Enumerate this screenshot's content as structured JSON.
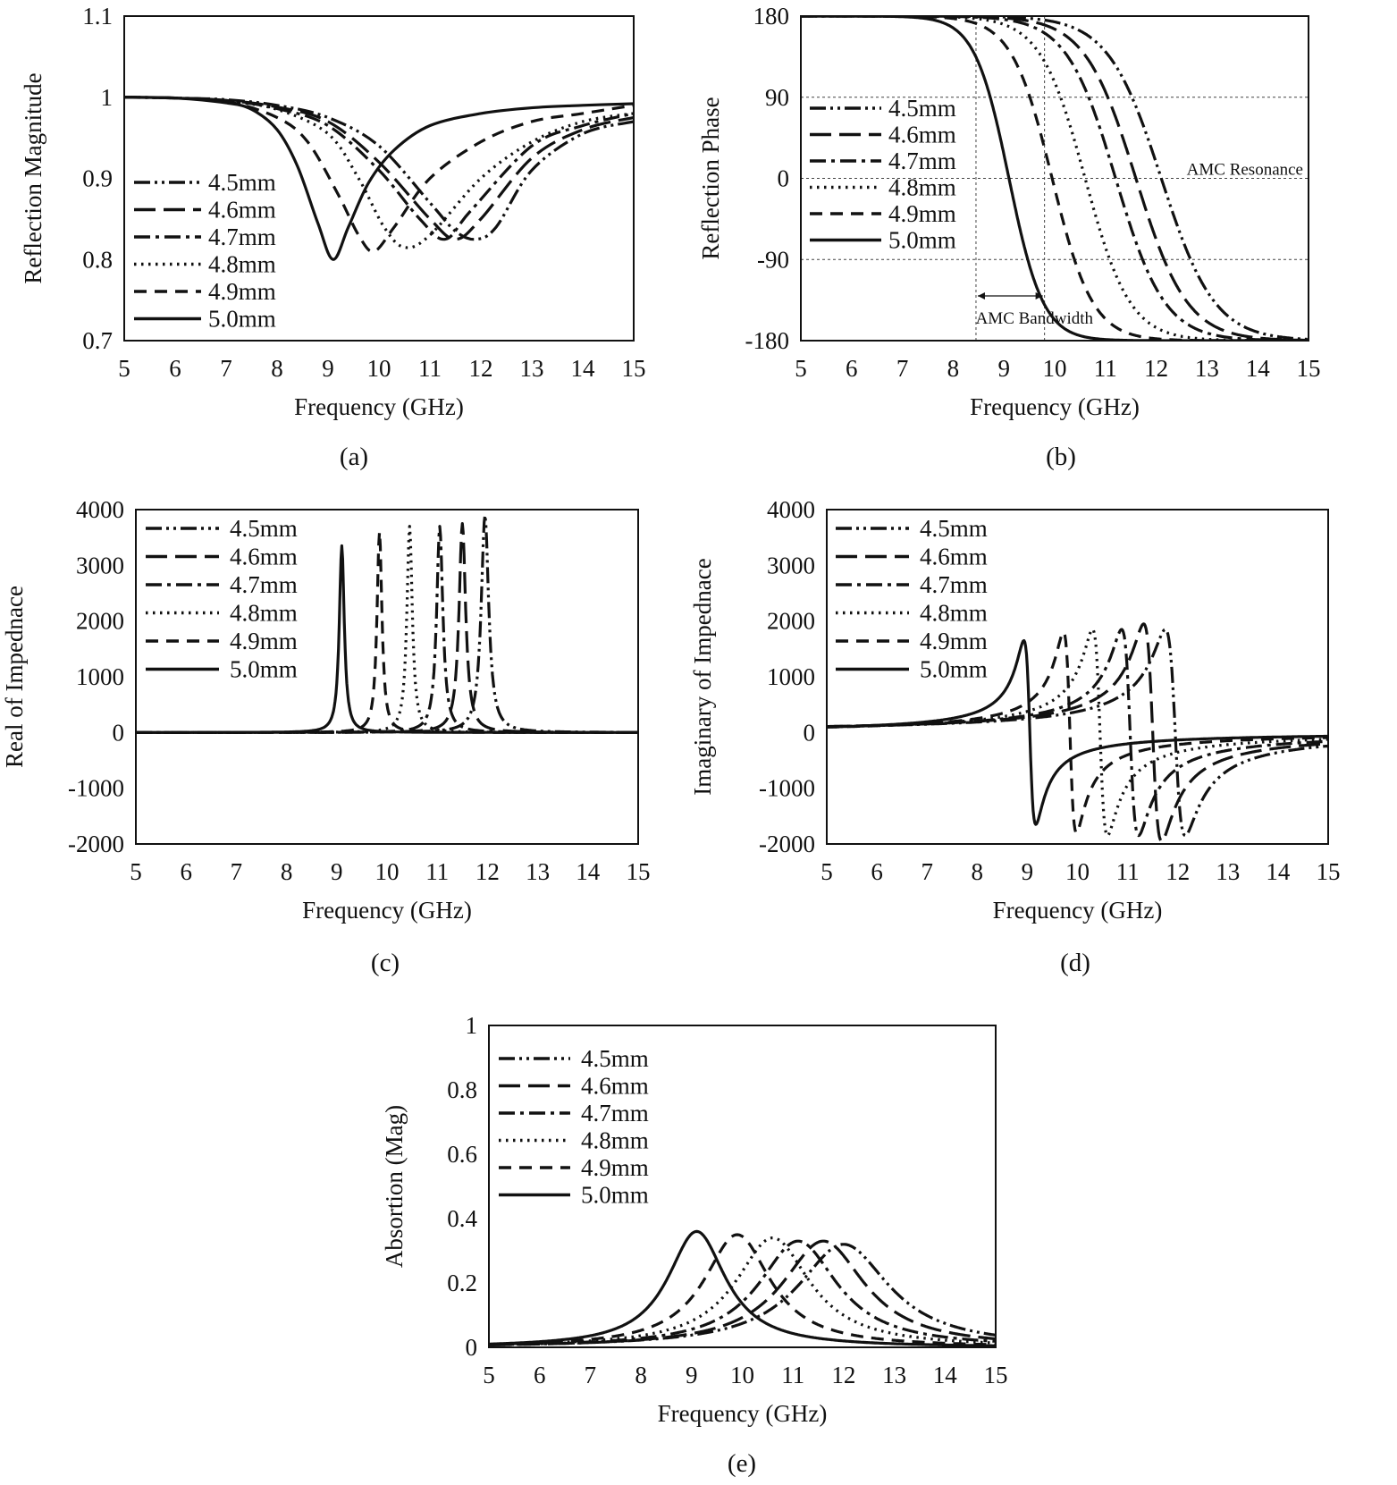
{
  "chart_data": [
    {
      "type": "line",
      "panel": "a",
      "caption": "(a)",
      "xlabel": "Frequency (GHz)",
      "ylabel": "Reflection Magnitude",
      "xlim": [
        5,
        15
      ],
      "ylim": [
        0.7,
        1.1
      ],
      "xticks": [
        "5",
        "6",
        "7",
        "8",
        "9",
        "10",
        "11",
        "12",
        "13",
        "14",
        "15"
      ],
      "yticks": [
        "0.7",
        "0.8",
        "0.9",
        "1",
        "1.1"
      ],
      "legend": {
        "placement": "lower-left"
      },
      "resonance_ghz": [
        11.9,
        11.5,
        11.3,
        10.5,
        9.9,
        9.1
      ],
      "series": [
        {
          "name": "4.5mm",
          "dash": "dash-dot-dot",
          "x": [
            5,
            6,
            7,
            8,
            9,
            10,
            11,
            11.5,
            11.9,
            12.3,
            13,
            14,
            15
          ],
          "y": [
            1.0,
            0.999,
            0.997,
            0.99,
            0.975,
            0.94,
            0.87,
            0.835,
            0.825,
            0.84,
            0.91,
            0.955,
            0.97
          ]
        },
        {
          "name": "4.6mm",
          "dash": "long-dash",
          "x": [
            5,
            6,
            7,
            8,
            9,
            10,
            11,
            11.5,
            12,
            13,
            14,
            15
          ],
          "y": [
            1.0,
            0.999,
            0.996,
            0.988,
            0.97,
            0.92,
            0.85,
            0.825,
            0.85,
            0.925,
            0.96,
            0.975
          ]
        },
        {
          "name": "4.7mm",
          "dash": "dash-dot",
          "x": [
            5,
            6,
            7,
            8,
            9,
            10,
            10.8,
            11.3,
            11.8,
            13,
            14,
            15
          ],
          "y": [
            1.0,
            0.999,
            0.996,
            0.986,
            0.965,
            0.91,
            0.85,
            0.825,
            0.86,
            0.94,
            0.965,
            0.98
          ]
        },
        {
          "name": "4.8mm",
          "dash": "dotted",
          "x": [
            5,
            6,
            7,
            8,
            9,
            9.6,
            10.1,
            10.5,
            11,
            12,
            13,
            14,
            15
          ],
          "y": [
            1.0,
            0.999,
            0.995,
            0.985,
            0.955,
            0.9,
            0.84,
            0.815,
            0.83,
            0.9,
            0.945,
            0.97,
            0.98
          ]
        },
        {
          "name": "4.9mm",
          "dash": "short-dash",
          "x": [
            5,
            6,
            7,
            8,
            8.6,
            9.2,
            9.6,
            9.9,
            10.3,
            11,
            12,
            13,
            14,
            15
          ],
          "y": [
            1.0,
            0.999,
            0.995,
            0.975,
            0.945,
            0.88,
            0.83,
            0.81,
            0.84,
            0.9,
            0.945,
            0.97,
            0.98,
            0.99
          ]
        },
        {
          "name": "5.0mm",
          "dash": "solid",
          "x": [
            5,
            6,
            7,
            7.5,
            8,
            8.4,
            8.8,
            9.1,
            9.4,
            9.8,
            10.3,
            11,
            12,
            13,
            14,
            15
          ],
          "y": [
            1.0,
            0.999,
            0.993,
            0.985,
            0.96,
            0.915,
            0.845,
            0.8,
            0.84,
            0.895,
            0.935,
            0.965,
            0.98,
            0.987,
            0.99,
            0.992
          ]
        }
      ]
    },
    {
      "type": "line",
      "panel": "b",
      "caption": "(b)",
      "xlabel": "Frequency (GHz)",
      "ylabel": "Reflection Phase",
      "xlim": [
        5,
        15
      ],
      "ylim": [
        -180,
        180
      ],
      "xticks": [
        "5",
        "6",
        "7",
        "8",
        "9",
        "10",
        "11",
        "12",
        "13",
        "14",
        "15"
      ],
      "yticks": [
        "-180",
        "-90",
        "0",
        "90",
        "180"
      ],
      "legend": {
        "placement": "left"
      },
      "annotations": {
        "resonance_label": "AMC Resonance",
        "bandwidth_label": "AMC Bandwidth",
        "bandwidth_ghz": [
          8.45,
          9.8
        ],
        "hlines_deg": [
          90,
          0,
          -90
        ]
      },
      "resonance_ghz": [
        12.1,
        11.6,
        11.2,
        10.6,
        9.95,
        9.1
      ],
      "series": [
        {
          "name": "4.5mm",
          "dash": "dash-dot-dot",
          "f0": 12.1,
          "width": 1.25
        },
        {
          "name": "4.6mm",
          "dash": "long-dash",
          "f0": 11.6,
          "width": 1.2
        },
        {
          "name": "4.7mm",
          "dash": "dash-dot",
          "f0": 11.2,
          "width": 1.15
        },
        {
          "name": "4.8mm",
          "dash": "dotted",
          "f0": 10.6,
          "width": 1.05
        },
        {
          "name": "4.9mm",
          "dash": "short-dash",
          "f0": 9.95,
          "width": 0.95
        },
        {
          "name": "5.0mm",
          "dash": "solid",
          "f0": 9.1,
          "width": 0.8
        }
      ]
    },
    {
      "type": "line",
      "panel": "c",
      "caption": "(c)",
      "xlabel": "Frequency (GHz)",
      "ylabel": "Real of Impednace",
      "xlim": [
        5,
        15
      ],
      "ylim": [
        -2000,
        4000
      ],
      "xticks": [
        "5",
        "6",
        "7",
        "8",
        "9",
        "10",
        "11",
        "12",
        "13",
        "14",
        "15"
      ],
      "yticks": [
        "-2000",
        "-1000",
        "0",
        "1000",
        "2000",
        "3000",
        "4000"
      ],
      "legend": {
        "placement": "top-left"
      },
      "series": [
        {
          "name": "4.5mm",
          "dash": "dash-dot-dot",
          "f0": 11.95,
          "peak": 3900,
          "hw": 0.09
        },
        {
          "name": "4.6mm",
          "dash": "long-dash",
          "f0": 11.5,
          "peak": 3750,
          "hw": 0.08
        },
        {
          "name": "4.7mm",
          "dash": "dash-dot",
          "f0": 11.05,
          "peak": 3700,
          "hw": 0.075
        },
        {
          "name": "4.8mm",
          "dash": "dotted",
          "f0": 10.45,
          "peak": 3700,
          "hw": 0.065
        },
        {
          "name": "4.9mm",
          "dash": "short-dash",
          "f0": 9.85,
          "peak": 3600,
          "hw": 0.06
        },
        {
          "name": "5.0mm",
          "dash": "solid",
          "f0": 9.1,
          "peak": 3350,
          "hw": 0.06
        }
      ]
    },
    {
      "type": "line",
      "panel": "d",
      "caption": "(d)",
      "xlabel": "Frequency (GHz)",
      "ylabel": "Imaginary of Impednace",
      "xlim": [
        5,
        15
      ],
      "ylim": [
        -2000,
        4000
      ],
      "xticks": [
        "5",
        "6",
        "7",
        "8",
        "9",
        "10",
        "11",
        "12",
        "13",
        "14",
        "15"
      ],
      "yticks": [
        "-2000",
        "-1000",
        "0",
        "1000",
        "2000",
        "3000",
        "4000"
      ],
      "legend": {
        "placement": "top-left"
      },
      "series": [
        {
          "name": "4.5mm",
          "dash": "dash-dot-dot",
          "f0": 11.95,
          "peak": 1850,
          "hw": 0.2
        },
        {
          "name": "4.6mm",
          "dash": "long-dash",
          "f0": 11.5,
          "peak": 1950,
          "hw": 0.18
        },
        {
          "name": "4.7mm",
          "dash": "dash-dot",
          "f0": 11.05,
          "peak": 1850,
          "hw": 0.17
        },
        {
          "name": "4.8mm",
          "dash": "dotted",
          "f0": 10.45,
          "peak": 1850,
          "hw": 0.15
        },
        {
          "name": "4.9mm",
          "dash": "short-dash",
          "f0": 9.85,
          "peak": 1800,
          "hw": 0.13
        },
        {
          "name": "5.0mm",
          "dash": "solid",
          "f0": 9.05,
          "peak": 1650,
          "hw": 0.12
        }
      ]
    },
    {
      "type": "line",
      "panel": "e",
      "caption": "(e)",
      "xlabel": "Frequency (GHz)",
      "ylabel": "Absortion (Mag)",
      "xlim": [
        5,
        15
      ],
      "ylim": [
        0,
        1
      ],
      "xticks": [
        "5",
        "6",
        "7",
        "8",
        "9",
        "10",
        "11",
        "12",
        "13",
        "14",
        "15"
      ],
      "yticks": [
        "0",
        "0.2",
        "0.4",
        "0.6",
        "0.8",
        "1"
      ],
      "legend": {
        "placement": "top-left"
      },
      "series": [
        {
          "name": "4.5mm",
          "dash": "dash-dot-dot",
          "f0": 12.0,
          "peak": 0.32,
          "hw": 1.1
        },
        {
          "name": "4.6mm",
          "dash": "long-dash",
          "f0": 11.6,
          "peak": 0.33,
          "hw": 1.0
        },
        {
          "name": "4.7mm",
          "dash": "dash-dot",
          "f0": 11.1,
          "peak": 0.33,
          "hw": 0.95
        },
        {
          "name": "4.8mm",
          "dash": "dotted",
          "f0": 10.6,
          "peak": 0.34,
          "hw": 0.9
        },
        {
          "name": "4.9mm",
          "dash": "short-dash",
          "f0": 9.9,
          "peak": 0.35,
          "hw": 0.8
        },
        {
          "name": "5.0mm",
          "dash": "solid",
          "f0": 9.1,
          "peak": 0.36,
          "hw": 0.7
        }
      ]
    }
  ]
}
